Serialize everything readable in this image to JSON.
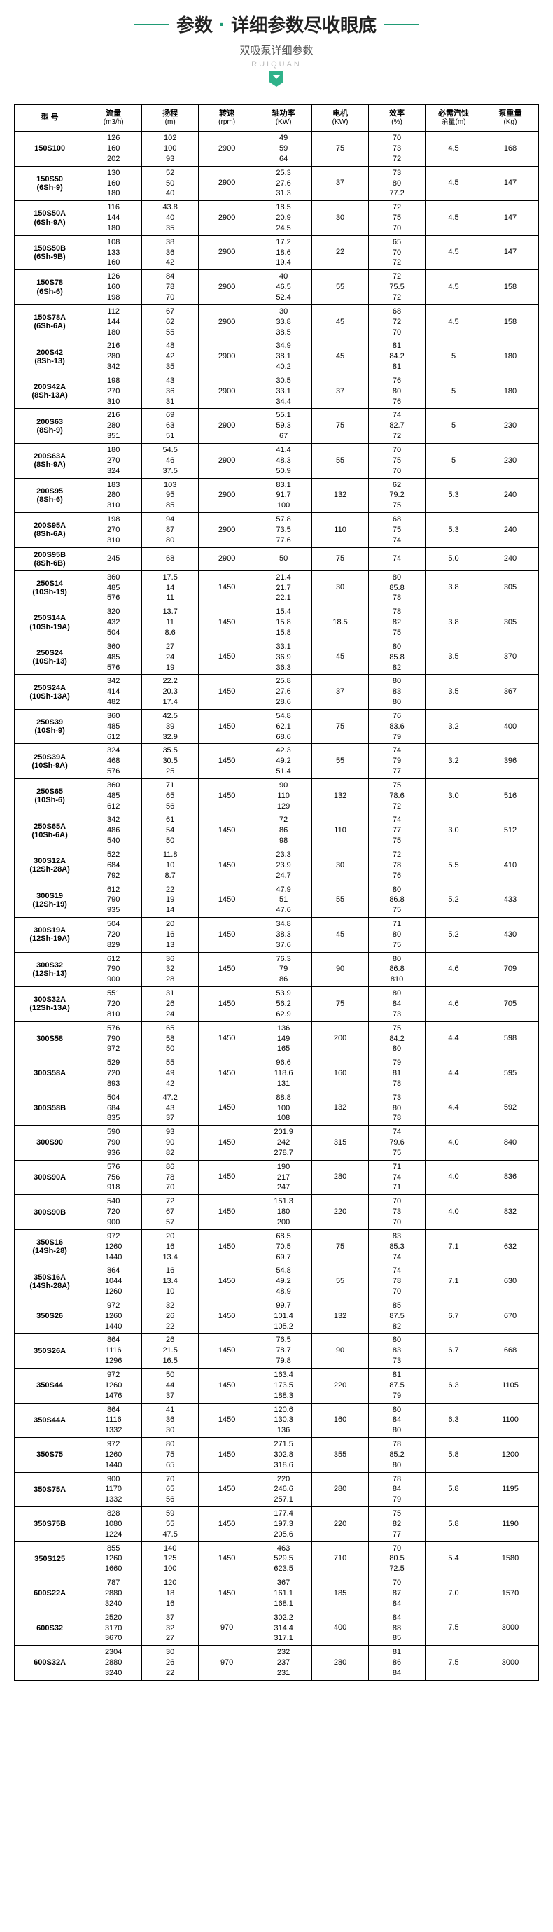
{
  "header": {
    "main_a": "参数",
    "main_b": "详细参数尽收眼底",
    "sub": "双吸泵详细参数",
    "brand": "RUIQUAN"
  },
  "columns": [
    {
      "label": "型 号",
      "unit": ""
    },
    {
      "label": "流量",
      "unit": "(m3/h)"
    },
    {
      "label": "扬程",
      "unit": "(m)"
    },
    {
      "label": "转速",
      "unit": "(rpm)"
    },
    {
      "label": "轴功率",
      "unit": "(KW)"
    },
    {
      "label": "电机",
      "unit": "(KW)"
    },
    {
      "label": "效率",
      "unit": "(%)"
    },
    {
      "label": "必需汽蚀",
      "unit": "余量(m)"
    },
    {
      "label": "泵重量",
      "unit": "(Kg)"
    }
  ],
  "rows": [
    {
      "model": "150S100",
      "flow": [
        "126",
        "160",
        "202"
      ],
      "head": [
        "102",
        "100",
        "93"
      ],
      "rpm": "2900",
      "shaft": [
        "49",
        "59",
        "64"
      ],
      "motor": "75",
      "eff": [
        "70",
        "73",
        "72"
      ],
      "npsh": "4.5",
      "wt": "168"
    },
    {
      "model": "150S50\n(6Sh-9)",
      "flow": [
        "130",
        "160",
        "180"
      ],
      "head": [
        "52",
        "50",
        "40"
      ],
      "rpm": "2900",
      "shaft": [
        "25.3",
        "27.6",
        "31.3"
      ],
      "motor": "37",
      "eff": [
        "73",
        "80",
        "77.2"
      ],
      "npsh": "4.5",
      "wt": "147"
    },
    {
      "model": "150S50A\n(6Sh-9A)",
      "flow": [
        "116",
        "144",
        "180"
      ],
      "head": [
        "43.8",
        "40",
        "35"
      ],
      "rpm": "2900",
      "shaft": [
        "18.5",
        "20.9",
        "24.5"
      ],
      "motor": "30",
      "eff": [
        "72",
        "75",
        "70"
      ],
      "npsh": "4.5",
      "wt": "147"
    },
    {
      "model": "150S50B\n(6Sh-9B)",
      "flow": [
        "108",
        "133",
        "160"
      ],
      "head": [
        "38",
        "36",
        "42"
      ],
      "rpm": "2900",
      "shaft": [
        "17.2",
        "18.6",
        "19.4"
      ],
      "motor": "22",
      "eff": [
        "65",
        "70",
        "72"
      ],
      "npsh": "4.5",
      "wt": "147"
    },
    {
      "model": "150S78\n(6Sh-6)",
      "flow": [
        "126",
        "160",
        "198"
      ],
      "head": [
        "84",
        "78",
        "70"
      ],
      "rpm": "2900",
      "shaft": [
        "40",
        "46.5",
        "52.4"
      ],
      "motor": "55",
      "eff": [
        "72",
        "75.5",
        "72"
      ],
      "npsh": "4.5",
      "wt": "158"
    },
    {
      "model": "150S78A\n(6Sh-6A)",
      "flow": [
        "112",
        "144",
        "180"
      ],
      "head": [
        "67",
        "62",
        "55"
      ],
      "rpm": "2900",
      "shaft": [
        "30",
        "33.8",
        "38.5"
      ],
      "motor": "45",
      "eff": [
        "68",
        "72",
        "70"
      ],
      "npsh": "4.5",
      "wt": "158"
    },
    {
      "model": "200S42\n(8Sh-13)",
      "flow": [
        "216",
        "280",
        "342"
      ],
      "head": [
        "48",
        "42",
        "35"
      ],
      "rpm": "2900",
      "shaft": [
        "34.9",
        "38.1",
        "40.2"
      ],
      "motor": "45",
      "eff": [
        "81",
        "84.2",
        "81"
      ],
      "npsh": "5",
      "wt": "180"
    },
    {
      "model": "200S42A\n(8Sh-13A)",
      "flow": [
        "198",
        "270",
        "310"
      ],
      "head": [
        "43",
        "36",
        "31"
      ],
      "rpm": "2900",
      "shaft": [
        "30.5",
        "33.1",
        "34.4"
      ],
      "motor": "37",
      "eff": [
        "76",
        "80",
        "76"
      ],
      "npsh": "5",
      "wt": "180"
    },
    {
      "model": "200S63\n(8Sh-9)",
      "flow": [
        "216",
        "280",
        "351"
      ],
      "head": [
        "69",
        "63",
        "51"
      ],
      "rpm": "2900",
      "shaft": [
        "55.1",
        "59.3",
        "67"
      ],
      "motor": "75",
      "eff": [
        "74",
        "82.7",
        "72"
      ],
      "npsh": "5",
      "wt": "230"
    },
    {
      "model": "200S63A\n(8Sh-9A)",
      "flow": [
        "180",
        "270",
        "324"
      ],
      "head": [
        "54.5",
        "46",
        "37.5"
      ],
      "rpm": "2900",
      "shaft": [
        "41.4",
        "48.3",
        "50.9"
      ],
      "motor": "55",
      "eff": [
        "70",
        "75",
        "70"
      ],
      "npsh": "5",
      "wt": "230"
    },
    {
      "model": "200S95\n(8Sh-6)",
      "flow": [
        "183",
        "280",
        "310"
      ],
      "head": [
        "103",
        "95",
        "85"
      ],
      "rpm": "2900",
      "shaft": [
        "83.1",
        "91.7",
        "100"
      ],
      "motor": "132",
      "eff": [
        "62",
        "79.2",
        "75"
      ],
      "npsh": "5.3",
      "wt": "240"
    },
    {
      "model": "200S95A\n(8Sh-6A)",
      "flow": [
        "198",
        "270",
        "310"
      ],
      "head": [
        "94",
        "87",
        "80"
      ],
      "rpm": "2900",
      "shaft": [
        "57.8",
        "73.5",
        "77.6"
      ],
      "motor": "110",
      "eff": [
        "68",
        "75",
        "74"
      ],
      "npsh": "5.3",
      "wt": "240"
    },
    {
      "model": "200S95B\n(8Sh-6B)",
      "flow": [
        "245"
      ],
      "head": [
        "68"
      ],
      "rpm": "2900",
      "shaft": [
        "50"
      ],
      "motor": "75",
      "eff": [
        "74"
      ],
      "npsh": "5.0",
      "wt": "240"
    },
    {
      "model": "250S14\n(10Sh-19)",
      "flow": [
        "360",
        "485",
        "576"
      ],
      "head": [
        "17.5",
        "14",
        "11"
      ],
      "rpm": "1450",
      "shaft": [
        "21.4",
        "21.7",
        "22.1"
      ],
      "motor": "30",
      "eff": [
        "80",
        "85.8",
        "78"
      ],
      "npsh": "3.8",
      "wt": "305"
    },
    {
      "model": "250S14A\n(10Sh-19A)",
      "flow": [
        "320",
        "432",
        "504"
      ],
      "head": [
        "13.7",
        "11",
        "8.6"
      ],
      "rpm": "1450",
      "shaft": [
        "15.4",
        "15.8",
        "15.8"
      ],
      "motor": "18.5",
      "eff": [
        "78",
        "82",
        "75"
      ],
      "npsh": "3.8",
      "wt": "305"
    },
    {
      "model": "250S24\n(10Sh-13)",
      "flow": [
        "360",
        "485",
        "576"
      ],
      "head": [
        "27",
        "24",
        "19"
      ],
      "rpm": "1450",
      "shaft": [
        "33.1",
        "36.9",
        "36.3"
      ],
      "motor": "45",
      "eff": [
        "80",
        "85.8",
        "82"
      ],
      "npsh": "3.5",
      "wt": "370"
    },
    {
      "model": "250S24A\n(10Sh-13A)",
      "flow": [
        "342",
        "414",
        "482"
      ],
      "head": [
        "22.2",
        "20.3",
        "17.4"
      ],
      "rpm": "1450",
      "shaft": [
        "25.8",
        "27.6",
        "28.6"
      ],
      "motor": "37",
      "eff": [
        "80",
        "83",
        "80"
      ],
      "npsh": "3.5",
      "wt": "367"
    },
    {
      "model": "250S39\n(10Sh-9)",
      "flow": [
        "360",
        "485",
        "612"
      ],
      "head": [
        "42.5",
        "39",
        "32.9"
      ],
      "rpm": "1450",
      "shaft": [
        "54.8",
        "62.1",
        "68.6"
      ],
      "motor": "75",
      "eff": [
        "76",
        "83.6",
        "79"
      ],
      "npsh": "3.2",
      "wt": "400"
    },
    {
      "model": "250S39A\n(10Sh-9A)",
      "flow": [
        "324",
        "468",
        "576"
      ],
      "head": [
        "35.5",
        "30.5",
        "25"
      ],
      "rpm": "1450",
      "shaft": [
        "42.3",
        "49.2",
        "51.4"
      ],
      "motor": "55",
      "eff": [
        "74",
        "79",
        "77"
      ],
      "npsh": "3.2",
      "wt": "396"
    },
    {
      "model": "250S65\n(10Sh-6)",
      "flow": [
        "360",
        "485",
        "612"
      ],
      "head": [
        "71",
        "65",
        "56"
      ],
      "rpm": "1450",
      "shaft": [
        "90",
        "110",
        "129"
      ],
      "motor": "132",
      "eff": [
        "75",
        "78.6",
        "72"
      ],
      "npsh": "3.0",
      "wt": "516"
    },
    {
      "model": "250S65A\n(10Sh-6A)",
      "flow": [
        "342",
        "486",
        "540"
      ],
      "head": [
        "61",
        "54",
        "50"
      ],
      "rpm": "1450",
      "shaft": [
        "72",
        "86",
        "98"
      ],
      "motor": "110",
      "eff": [
        "74",
        "77",
        "75"
      ],
      "npsh": "3.0",
      "wt": "512"
    },
    {
      "model": "300S12A\n(12Sh-28A)",
      "flow": [
        "522",
        "684",
        "792"
      ],
      "head": [
        "11.8",
        "10",
        "8.7"
      ],
      "rpm": "1450",
      "shaft": [
        "23.3",
        "23.9",
        "24.7"
      ],
      "motor": "30",
      "eff": [
        "72",
        "78",
        "76"
      ],
      "npsh": "5.5",
      "wt": "410"
    },
    {
      "model": "300S19\n(12Sh-19)",
      "flow": [
        "612",
        "790",
        "935"
      ],
      "head": [
        "22",
        "19",
        "14"
      ],
      "rpm": "1450",
      "shaft": [
        "47.9",
        "51",
        "47.6"
      ],
      "motor": "55",
      "eff": [
        "80",
        "86.8",
        "75"
      ],
      "npsh": "5.2",
      "wt": "433"
    },
    {
      "model": "300S19A\n(12Sh-19A)",
      "flow": [
        "504",
        "720",
        "829"
      ],
      "head": [
        "20",
        "16",
        "13"
      ],
      "rpm": "1450",
      "shaft": [
        "34.8",
        "38.3",
        "37.6"
      ],
      "motor": "45",
      "eff": [
        "71",
        "80",
        "75"
      ],
      "npsh": "5.2",
      "wt": "430"
    },
    {
      "model": "300S32\n(12Sh-13)",
      "flow": [
        "612",
        "790",
        "900"
      ],
      "head": [
        "36",
        "32",
        "28"
      ],
      "rpm": "1450",
      "shaft": [
        "76.3",
        "79",
        "86"
      ],
      "motor": "90",
      "eff": [
        "80",
        "86.8",
        "810"
      ],
      "npsh": "4.6",
      "wt": "709"
    },
    {
      "model": "300S32A\n(12Sh-13A)",
      "flow": [
        "551",
        "720",
        "810"
      ],
      "head": [
        "31",
        "26",
        "24"
      ],
      "rpm": "1450",
      "shaft": [
        "53.9",
        "56.2",
        "62.9"
      ],
      "motor": "75",
      "eff": [
        "80",
        "84",
        "73"
      ],
      "npsh": "4.6",
      "wt": "705"
    },
    {
      "model": "300S58",
      "flow": [
        "576",
        "790",
        "972"
      ],
      "head": [
        "65",
        "58",
        "50"
      ],
      "rpm": "1450",
      "shaft": [
        "136",
        "149",
        "165"
      ],
      "motor": "200",
      "eff": [
        "75",
        "84.2",
        "80"
      ],
      "npsh": "4.4",
      "wt": "598"
    },
    {
      "model": "300S58A",
      "flow": [
        "529",
        "720",
        "893"
      ],
      "head": [
        "55",
        "49",
        "42"
      ],
      "rpm": "1450",
      "shaft": [
        "96.6",
        "118.6",
        "131"
      ],
      "motor": "160",
      "eff": [
        "79",
        "81",
        "78"
      ],
      "npsh": "4.4",
      "wt": "595"
    },
    {
      "model": "300S58B",
      "flow": [
        "504",
        "684",
        "835"
      ],
      "head": [
        "47.2",
        "43",
        "37"
      ],
      "rpm": "1450",
      "shaft": [
        "88.8",
        "100",
        "108"
      ],
      "motor": "132",
      "eff": [
        "73",
        "80",
        "78"
      ],
      "npsh": "4.4",
      "wt": "592"
    },
    {
      "model": "300S90",
      "flow": [
        "590",
        "790",
        "936"
      ],
      "head": [
        "93",
        "90",
        "82"
      ],
      "rpm": "1450",
      "shaft": [
        "201.9",
        "242",
        "278.7"
      ],
      "motor": "315",
      "eff": [
        "74",
        "79.6",
        "75"
      ],
      "npsh": "4.0",
      "wt": "840"
    },
    {
      "model": "300S90A",
      "flow": [
        "576",
        "756",
        "918"
      ],
      "head": [
        "86",
        "78",
        "70"
      ],
      "rpm": "1450",
      "shaft": [
        "190",
        "217",
        "247"
      ],
      "motor": "280",
      "eff": [
        "71",
        "74",
        "71"
      ],
      "npsh": "4.0",
      "wt": "836"
    },
    {
      "model": "300S90B",
      "flow": [
        "540",
        "720",
        "900"
      ],
      "head": [
        "72",
        "67",
        "57"
      ],
      "rpm": "1450",
      "shaft": [
        "151.3",
        "180",
        "200"
      ],
      "motor": "220",
      "eff": [
        "70",
        "73",
        "70"
      ],
      "npsh": "4.0",
      "wt": "832"
    },
    {
      "model": "350S16\n(14Sh-28)",
      "flow": [
        "972",
        "1260",
        "1440"
      ],
      "head": [
        "20",
        "16",
        "13.4"
      ],
      "rpm": "1450",
      "shaft": [
        "68.5",
        "70.5",
        "69.7"
      ],
      "motor": "75",
      "eff": [
        "83",
        "85.3",
        "74"
      ],
      "npsh": "7.1",
      "wt": "632"
    },
    {
      "model": "350S16A\n(14Sh-28A)",
      "flow": [
        "864",
        "1044",
        "1260"
      ],
      "head": [
        "16",
        "13.4",
        "10"
      ],
      "rpm": "1450",
      "shaft": [
        "54.8",
        "49.2",
        "48.9"
      ],
      "motor": "55",
      "eff": [
        "74",
        "78",
        "70"
      ],
      "npsh": "7.1",
      "wt": "630"
    },
    {
      "model": "350S26",
      "flow": [
        "972",
        "1260",
        "1440"
      ],
      "head": [
        "32",
        "26",
        "22"
      ],
      "rpm": "1450",
      "shaft": [
        "99.7",
        "101.4",
        "105.2"
      ],
      "motor": "132",
      "eff": [
        "85",
        "87.5",
        "82"
      ],
      "npsh": "6.7",
      "wt": "670"
    },
    {
      "model": "350S26A",
      "flow": [
        "864",
        "1116",
        "1296"
      ],
      "head": [
        "26",
        "21.5",
        "16.5"
      ],
      "rpm": "1450",
      "shaft": [
        "76.5",
        "78.7",
        "79.8"
      ],
      "motor": "90",
      "eff": [
        "80",
        "83",
        "73"
      ],
      "npsh": "6.7",
      "wt": "668"
    },
    {
      "model": "350S44",
      "flow": [
        "972",
        "1260",
        "1476"
      ],
      "head": [
        "50",
        "44",
        "37"
      ],
      "rpm": "1450",
      "shaft": [
        "163.4",
        "173.5",
        "188.3"
      ],
      "motor": "220",
      "eff": [
        "81",
        "87.5",
        "79"
      ],
      "npsh": "6.3",
      "wt": "1105"
    },
    {
      "model": "350S44A",
      "flow": [
        "864",
        "1116",
        "1332"
      ],
      "head": [
        "41",
        "36",
        "30"
      ],
      "rpm": "1450",
      "shaft": [
        "120.6",
        "130.3",
        "136"
      ],
      "motor": "160",
      "eff": [
        "80",
        "84",
        "80"
      ],
      "npsh": "6.3",
      "wt": "1100"
    },
    {
      "model": "350S75",
      "flow": [
        "972",
        "1260",
        "1440"
      ],
      "head": [
        "80",
        "75",
        "65"
      ],
      "rpm": "1450",
      "shaft": [
        "271.5",
        "302.8",
        "318.6"
      ],
      "motor": "355",
      "eff": [
        "78",
        "85.2",
        "80"
      ],
      "npsh": "5.8",
      "wt": "1200"
    },
    {
      "model": "350S75A",
      "flow": [
        "900",
        "1170",
        "1332"
      ],
      "head": [
        "70",
        "65",
        "56"
      ],
      "rpm": "1450",
      "shaft": [
        "220",
        "246.6",
        "257.1"
      ],
      "motor": "280",
      "eff": [
        "78",
        "84",
        "79"
      ],
      "npsh": "5.8",
      "wt": "1195"
    },
    {
      "model": "350S75B",
      "flow": [
        "828",
        "1080",
        "1224"
      ],
      "head": [
        "59",
        "55",
        "47.5"
      ],
      "rpm": "1450",
      "shaft": [
        "177.4",
        "197.3",
        "205.6"
      ],
      "motor": "220",
      "eff": [
        "75",
        "82",
        "77"
      ],
      "npsh": "5.8",
      "wt": "1190"
    },
    {
      "model": "350S125",
      "flow": [
        "855",
        "1260",
        "1660"
      ],
      "head": [
        "140",
        "125",
        "100"
      ],
      "rpm": "1450",
      "shaft": [
        "463",
        "529.5",
        "623.5"
      ],
      "motor": "710",
      "eff": [
        "70",
        "80.5",
        "72.5"
      ],
      "npsh": "5.4",
      "wt": "1580"
    },
    {
      "model": "600S22A",
      "flow": [
        "787",
        "2880",
        "3240"
      ],
      "head": [
        "120",
        "18",
        "16"
      ],
      "rpm": "1450",
      "shaft": [
        "367",
        "161.1",
        "168.1"
      ],
      "motor": "185",
      "eff": [
        "70",
        "87",
        "84"
      ],
      "npsh": "7.0",
      "wt": "1570"
    },
    {
      "model": "600S32",
      "flow": [
        "2520",
        "3170",
        "3670"
      ],
      "head": [
        "37",
        "32",
        "27"
      ],
      "rpm": "970",
      "shaft": [
        "302.2",
        "314.4",
        "317.1"
      ],
      "motor": "400",
      "eff": [
        "84",
        "88",
        "85"
      ],
      "npsh": "7.5",
      "wt": "3000"
    },
    {
      "model": "600S32A",
      "flow": [
        "2304",
        "2880",
        "3240"
      ],
      "head": [
        "30",
        "26",
        "22"
      ],
      "rpm": "970",
      "shaft": [
        "232",
        "237",
        "231"
      ],
      "motor": "280",
      "eff": [
        "81",
        "86",
        "84"
      ],
      "npsh": "7.5",
      "wt": "3000"
    }
  ]
}
